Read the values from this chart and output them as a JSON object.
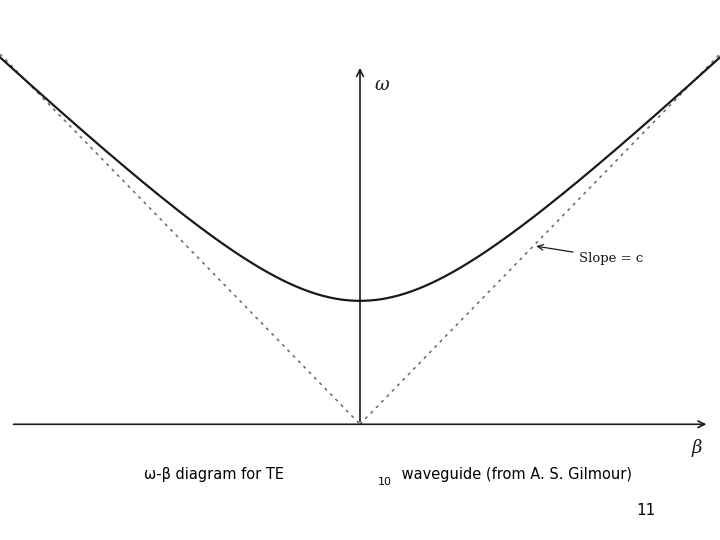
{
  "omega_label": "ω",
  "beta_label": "β",
  "slope_label": "Slope = c",
  "page_number": "11",
  "bg_color": "#ffffff",
  "curve_color": "#1a1a1a",
  "dotted_color": "#666666",
  "axis_color": "#1a1a1a",
  "linewidth_curve": 1.6,
  "linewidth_dotted": 1.1,
  "linewidth_axis": 1.2,
  "omega_cutoff": 1.0,
  "beta_max": 2.8,
  "omega_display_max": 3.0,
  "caption": "ω-β diagram for TE",
  "caption_sub": "10",
  "caption_end": " waveguide (from A. S. Gilmour)"
}
